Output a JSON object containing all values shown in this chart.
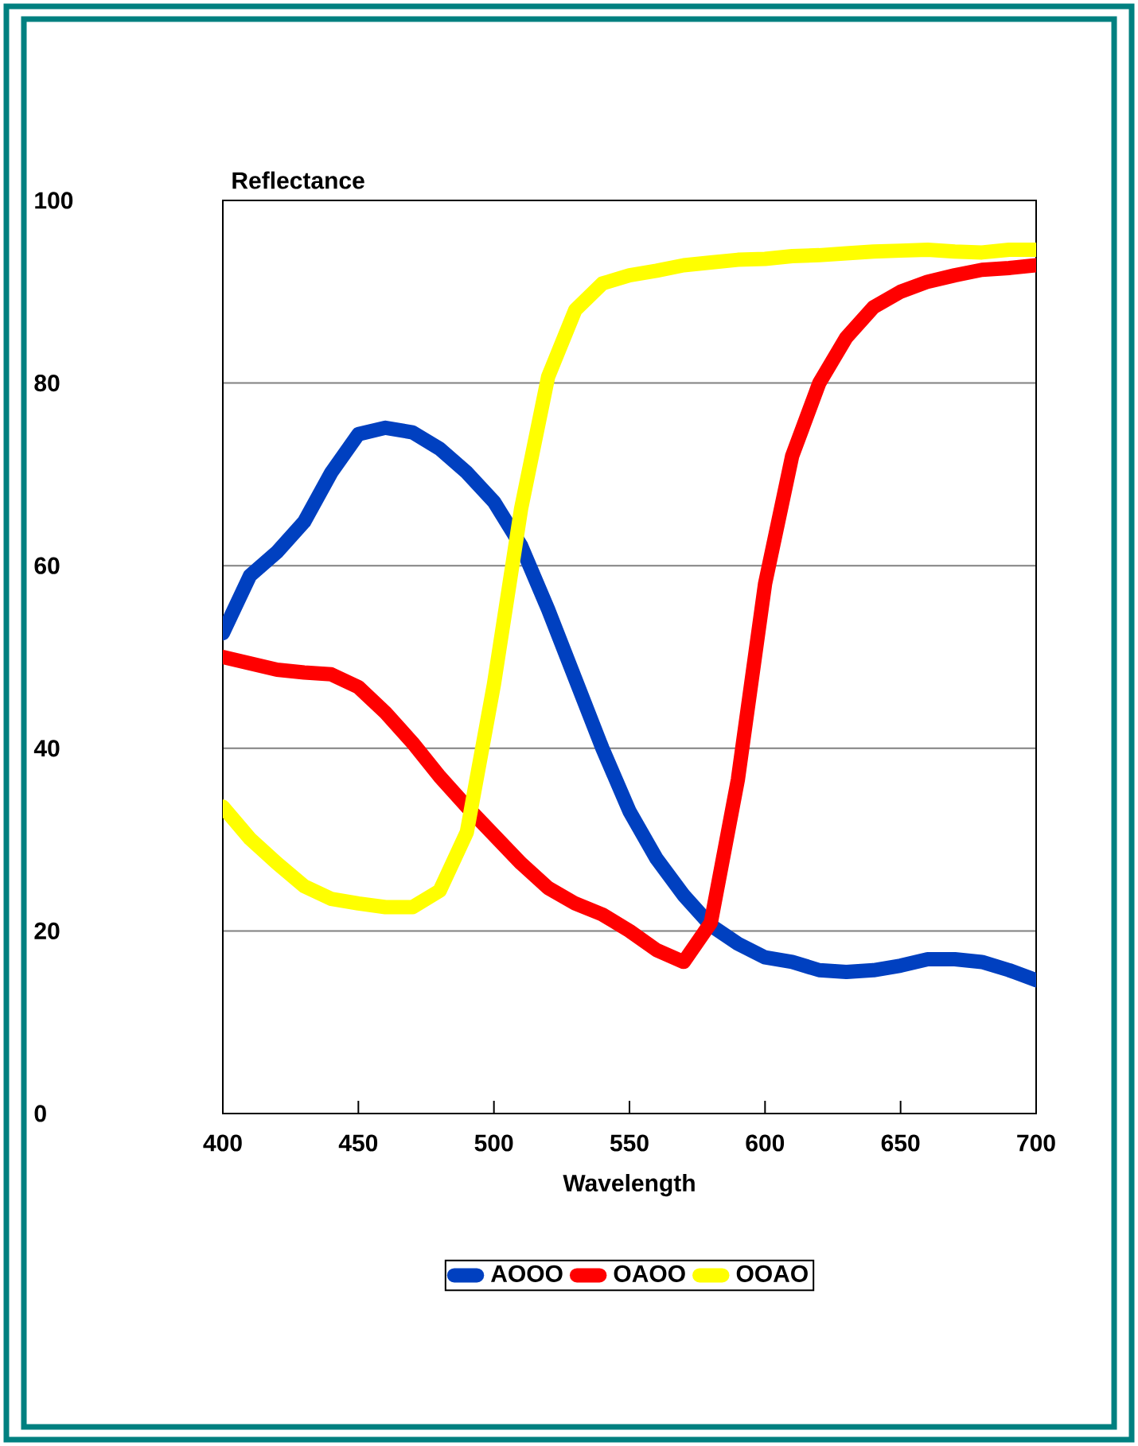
{
  "chart_data": {
    "type": "line",
    "xlabel": "Wavelength",
    "ylabel": "Reflectance",
    "x": [
      400,
      410,
      420,
      430,
      440,
      450,
      460,
      470,
      480,
      490,
      500,
      510,
      520,
      530,
      540,
      550,
      560,
      570,
      580,
      590,
      600,
      610,
      620,
      630,
      640,
      650,
      660,
      670,
      680,
      690,
      700
    ],
    "xlim": [
      400,
      700
    ],
    "xticks": [
      400,
      450,
      500,
      550,
      600,
      650,
      700
    ],
    "ylim": [
      0,
      100
    ],
    "yticks": [
      0,
      20,
      40,
      60,
      80,
      100
    ],
    "grid": "y",
    "legend": "bottom",
    "line_style": "solid",
    "series": [
      {
        "name": "AOOO",
        "color": "#0040c0",
        "values": [
          52.6,
          58.9,
          61.5,
          64.8,
          70.2,
          74.4,
          75.1,
          74.6,
          72.8,
          70.2,
          67,
          62.2,
          55.2,
          47.6,
          40,
          33.1,
          27.9,
          23.9,
          20.6,
          18.6,
          17.1,
          16.6,
          15.7,
          15.5,
          15.7,
          16.2,
          16.9,
          16.9,
          16.6,
          15.7,
          14.6
        ]
      },
      {
        "name": "OAOO",
        "color": "#ff0000",
        "values": [
          50,
          49.3,
          48.6,
          48.3,
          48.1,
          46.7,
          43.9,
          40.6,
          36.9,
          33.6,
          30.5,
          27.4,
          24.7,
          23,
          21.8,
          20,
          17.9,
          16.6,
          20.9,
          36.6,
          58,
          72,
          80,
          85,
          88.3,
          90,
          91.1,
          91.8,
          92.4,
          92.6,
          92.9
        ]
      },
      {
        "name": "OOAO",
        "color": "#ffff00",
        "values": [
          33.6,
          30.1,
          27.4,
          24.9,
          23.5,
          23,
          22.6,
          22.6,
          24.4,
          30.8,
          47,
          66.2,
          80.7,
          88,
          90.9,
          91.8,
          92.3,
          92.9,
          93.2,
          93.5,
          93.6,
          93.9,
          94,
          94.2,
          94.4,
          94.5,
          94.6,
          94.4,
          94.3,
          94.6,
          94.6
        ]
      }
    ]
  }
}
